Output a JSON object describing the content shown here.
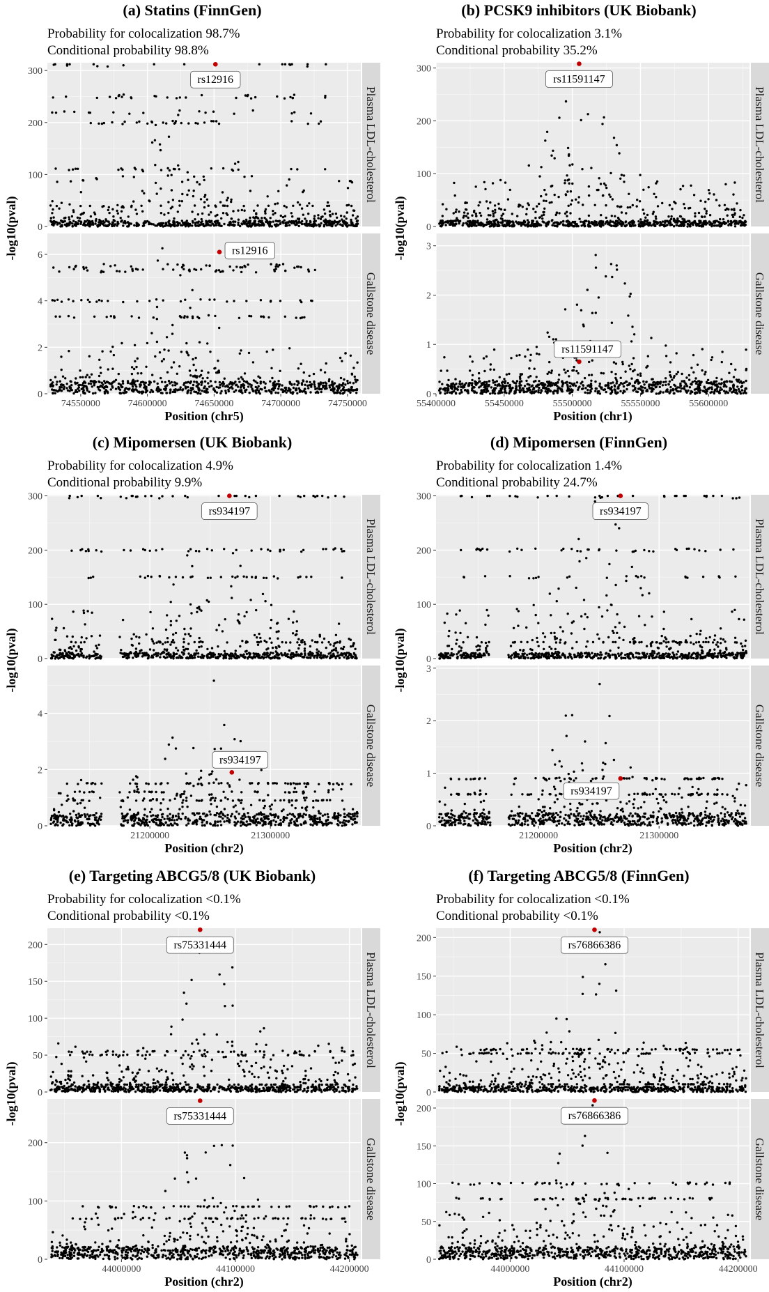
{
  "chart_data": [
    {
      "id": "a",
      "type": "scatter",
      "title": "(a) Statins (FinnGen)",
      "prob": "Probability for colocalization 98.7%",
      "cond": "Conditional probability 98.8%",
      "xlabel": "Position (chr5)",
      "ylabel": "-log10(pval)",
      "xlim": [
        74525000,
        74760000
      ],
      "xticks": [
        74550000,
        74600000,
        74650000,
        74700000,
        74750000
      ],
      "gaps": [],
      "facets": [
        {
          "strip": "Plasma LDL-cholesterol",
          "ylim": [
            0,
            315
          ],
          "yticks": [
            0,
            100,
            200,
            300
          ],
          "snp": {
            "label": "rs12916",
            "x": 74651000,
            "y": 312,
            "labelPos": "below"
          },
          "levels": [
            40,
            110,
            200,
            220,
            250,
            312
          ],
          "peak": 74630000,
          "maxv": 312
        },
        {
          "strip": "Gallstone disease",
          "ylim": [
            0,
            6.9
          ],
          "yticks": [
            0,
            2,
            4,
            6
          ],
          "snp": {
            "label": "rs12916",
            "x": 74654000,
            "y": 6.1,
            "labelPos": "right"
          },
          "levels": [
            3.3,
            4.0,
            5.3,
            5.5
          ],
          "peak": 74620000,
          "maxv": 6.7
        }
      ]
    },
    {
      "id": "b",
      "type": "scatter",
      "title": "(b) PCSK9 inhibitors (UK Biobank)",
      "prob": "Probability for colocalization 3.1%",
      "cond": "Conditional probability 35.2%",
      "xlabel": "Position (chr1)",
      "ylabel": "-log10(pval)",
      "xlim": [
        55400000,
        55630000
      ],
      "xticks": [
        55400000,
        55450000,
        55500000,
        55550000,
        55600000
      ],
      "gaps": [],
      "facets": [
        {
          "strip": "Plasma LDL-cholesterol",
          "ylim": [
            0,
            310
          ],
          "yticks": [
            0,
            100,
            200,
            300
          ],
          "snp": {
            "label": "rs11591147",
            "x": 55505000,
            "y": 308,
            "labelPos": "below"
          },
          "levels": [],
          "peak": 55505000,
          "maxv": 290
        },
        {
          "strip": "Gallstone disease",
          "ylim": [
            0,
            3.25
          ],
          "yticks": [
            0,
            1,
            2,
            3
          ],
          "snp": {
            "label": "rs11591147",
            "x": 55505000,
            "y": 0.65,
            "labelPos": "above"
          },
          "levels": [],
          "peak": 55520000,
          "maxv": 3.1
        }
      ]
    },
    {
      "id": "c",
      "type": "scatter",
      "title": "(c) Mipomersen (UK Biobank)",
      "prob": "Probability for colocalization 4.9%",
      "cond": "Conditional probability 9.9%",
      "xlabel": "Position (chr2)",
      "ylabel": "-log10(pval)",
      "xlim": [
        21115000,
        21375000
      ],
      "xticks": [
        21200000,
        21300000
      ],
      "gaps": [
        [
          21160000,
          21175000
        ]
      ],
      "facets": [
        {
          "strip": "Plasma LDL-cholesterol",
          "ylim": [
            0,
            302
          ],
          "yticks": [
            0,
            100,
            200,
            300
          ],
          "snp": {
            "label": "rs934197",
            "x": 21266000,
            "y": 300,
            "labelPos": "below"
          },
          "levels": [
            30,
            150,
            200,
            300
          ],
          "peak": 21250000,
          "maxv": 300
        },
        {
          "strip": "Gallstone disease",
          "ylim": [
            0,
            5.7
          ],
          "yticks": [
            0,
            2,
            4
          ],
          "snp": {
            "label": "rs934197",
            "x": 21268000,
            "y": 1.9,
            "labelPos": "above"
          },
          "levels": [
            0.9,
            1.2,
            1.5
          ],
          "peak": 21245000,
          "maxv": 5.5
        }
      ]
    },
    {
      "id": "d",
      "type": "scatter",
      "title": "(d) Mipomersen (FinnGen)",
      "prob": "Probability for colocalization 1.4%",
      "cond": "Conditional probability 24.7%",
      "xlabel": "Position (chr2)",
      "ylabel": "-log10(pval)",
      "xlim": [
        21115000,
        21375000
      ],
      "xticks": [
        21200000,
        21300000
      ],
      "gaps": [
        [
          21160000,
          21175000
        ]
      ],
      "facets": [
        {
          "strip": "Plasma LDL-cholesterol",
          "ylim": [
            0,
            302
          ],
          "yticks": [
            0,
            100,
            200,
            300
          ],
          "snp": {
            "label": "rs934197",
            "x": 21268000,
            "y": 300,
            "labelPos": "below"
          },
          "levels": [
            30,
            150,
            200,
            300
          ],
          "peak": 21250000,
          "maxv": 300
        },
        {
          "strip": "Gallstone disease",
          "ylim": [
            0,
            3.05
          ],
          "yticks": [
            0,
            1,
            2,
            3
          ],
          "snp": {
            "label": "rs934197",
            "x": 21268000,
            "y": 0.9,
            "labelPos": "belowleft"
          },
          "levels": [
            0.6,
            0.9
          ],
          "peak": 21240000,
          "maxv": 2.95
        }
      ]
    },
    {
      "id": "e",
      "type": "scatter",
      "title": "(e) Targeting ABCG5/8 (UK Biobank)",
      "prob": "Probability for colocalization <0.1%",
      "cond": "Conditional probability <0.1%",
      "xlabel": "Position (chr2)",
      "ylabel": "-log10(pval)",
      "xlim": [
        43935000,
        44210000
      ],
      "xticks": [
        44000000,
        44100000,
        44200000
      ],
      "gaps": [],
      "facets": [
        {
          "strip": "Plasma LDL-cholesterol",
          "ylim": [
            0,
            222
          ],
          "yticks": [
            0,
            50,
            100,
            150,
            200
          ],
          "snp": {
            "label": "rs75331444",
            "x": 44069000,
            "y": 220,
            "labelPos": "below"
          },
          "levels": [
            10,
            50,
            55
          ],
          "peak": 44080000,
          "maxv": 220
        },
        {
          "strip": "Gallstone disease",
          "ylim": [
            0,
            275
          ],
          "yticks": [
            0,
            100,
            200
          ],
          "snp": {
            "label": "rs75331444",
            "x": 44069000,
            "y": 272,
            "labelPos": "below"
          },
          "levels": [
            15,
            70,
            90
          ],
          "peak": 44080000,
          "maxv": 272
        }
      ]
    },
    {
      "id": "f",
      "type": "scatter",
      "title": "(f) Targeting ABCG5/8 (FinnGen)",
      "prob": "Probability for colocalization <0.1%",
      "cond": "Conditional probability <0.1%",
      "xlabel": "Position (chr2)",
      "ylabel": "-log10(pval)",
      "xlim": [
        43935000,
        44210000
      ],
      "xticks": [
        44000000,
        44100000,
        44200000
      ],
      "gaps": [],
      "facets": [
        {
          "strip": "Plasma LDL-cholesterol",
          "ylim": [
            0,
            212
          ],
          "yticks": [
            0,
            50,
            100,
            150,
            200
          ],
          "snp": {
            "label": "rs76866386",
            "x": 44074000,
            "y": 210,
            "labelPos": "below"
          },
          "levels": [
            10,
            50,
            55
          ],
          "peak": 44080000,
          "maxv": 210
        },
        {
          "strip": "Gallstone disease",
          "ylim": [
            0,
            212
          ],
          "yticks": [
            0,
            50,
            100,
            150,
            200
          ],
          "snp": {
            "label": "rs76866386",
            "x": 44074000,
            "y": 210,
            "labelPos": "below"
          },
          "levels": [
            10,
            80,
            100
          ],
          "peak": 44070000,
          "maxv": 210
        }
      ]
    }
  ]
}
